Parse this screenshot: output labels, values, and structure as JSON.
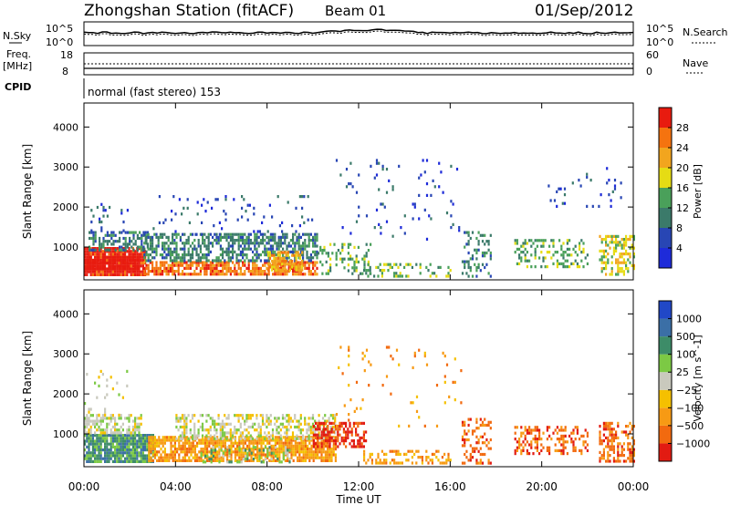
{
  "header": {
    "station": "Zhongshan Station (fitACF)",
    "beam": "Beam 01",
    "date": "01/Sep/2012"
  },
  "top_panels": {
    "nsky_label": "N.Sky",
    "nsearch_label": "N.Search",
    "noise_ticks_left": [
      "10^5",
      "10^0"
    ],
    "noise_ticks_right": [
      "10^5",
      "10^0"
    ],
    "freq_label_1": "Freq.",
    "freq_label_2": "[MHz]",
    "freq_ticks": [
      "18",
      "8"
    ],
    "nave_label": "Nave",
    "nave_ticks": [
      "60",
      "0"
    ],
    "cpid_label": "CPID",
    "cpid_text": "normal (fast stereo) 153"
  },
  "axes": {
    "ylabel": "Slant Range [km]",
    "xlabel": "Time UT",
    "yticks": [
      1000,
      2000,
      3000,
      4000
    ],
    "xticks": [
      "00:00",
      "04:00",
      "08:00",
      "12:00",
      "16:00",
      "20:00",
      "00:00"
    ]
  },
  "colorbars": {
    "power": {
      "label": "Power [dB]",
      "ticks": [
        "4",
        "8",
        "12",
        "16",
        "20",
        "24",
        "28"
      ],
      "colors": [
        "#1e2bd9",
        "#2846b4",
        "#3b7a6a",
        "#4aa05a",
        "#e6dc14",
        "#f2a51e",
        "#f5730f",
        "#e81b0f"
      ]
    },
    "velocity": {
      "label": "Velocity [m s^-1]",
      "ticks": [
        "1000",
        "500",
        "100",
        "25",
        "−25",
        "−100",
        "−500",
        "−1000"
      ],
      "colors": [
        "#2148c7",
        "#3b6fa6",
        "#3d8c68",
        "#7cc944",
        "#c9c9bd",
        "#f5c000",
        "#f79a14",
        "#f26a0f",
        "#e21b12"
      ]
    }
  },
  "chart_data": [
    {
      "type": "heatmap",
      "title": "Power",
      "xlabel": "Time UT",
      "ylabel": "Slant Range [km]",
      "xlim": [
        0,
        24
      ],
      "ylim": [
        180,
        4600
      ],
      "colorbar_label": "Power [dB]",
      "regions": [
        {
          "t0": 0.0,
          "t1": 2.7,
          "r0": 300,
          "r1": 1000,
          "level": 7,
          "density": 0.9
        },
        {
          "t0": 0.0,
          "t1": 2.4,
          "r0": 450,
          "r1": 780,
          "level": 8,
          "density": 0.85
        },
        {
          "t0": 0.2,
          "t1": 2.8,
          "r0": 900,
          "r1": 1400,
          "level": 2,
          "density": 0.55
        },
        {
          "t0": 0.2,
          "t1": 2.0,
          "r0": 1400,
          "r1": 2100,
          "level": 1,
          "density": 0.08
        },
        {
          "t0": 2.6,
          "t1": 10.2,
          "r0": 300,
          "r1": 650,
          "level": 6,
          "density": 0.75
        },
        {
          "t0": 2.6,
          "t1": 10.2,
          "r0": 650,
          "r1": 1350,
          "level": 2,
          "density": 0.6
        },
        {
          "t0": 3.0,
          "t1": 10.0,
          "r0": 1350,
          "r1": 2300,
          "level": 1,
          "density": 0.06
        },
        {
          "t0": 8.0,
          "t1": 9.5,
          "r0": 400,
          "r1": 900,
          "level": 5,
          "density": 0.7
        },
        {
          "t0": 10.2,
          "t1": 12.5,
          "r0": 300,
          "r1": 1100,
          "level": 3,
          "density": 0.25
        },
        {
          "t0": 11.0,
          "t1": 16.5,
          "r0": 1200,
          "r1": 3200,
          "level": 1,
          "density": 0.04
        },
        {
          "t0": 12.2,
          "t1": 16.0,
          "r0": 300,
          "r1": 600,
          "level": 3,
          "density": 0.35
        },
        {
          "t0": 16.5,
          "t1": 17.8,
          "r0": 300,
          "r1": 1400,
          "level": 2,
          "density": 0.3
        },
        {
          "t0": 18.8,
          "t1": 22.0,
          "r0": 500,
          "r1": 1200,
          "level": 3,
          "density": 0.35
        },
        {
          "t0": 22.5,
          "t1": 24.0,
          "r0": 300,
          "r1": 1300,
          "level": 4,
          "density": 0.45
        },
        {
          "t0": 20.0,
          "t1": 23.5,
          "r0": 2000,
          "r1": 3000,
          "level": 1,
          "density": 0.04
        }
      ]
    },
    {
      "type": "heatmap",
      "title": "Velocity",
      "xlabel": "Time UT",
      "ylabel": "Slant Range [km]",
      "xlim": [
        0,
        24
      ],
      "ylim": [
        180,
        4600
      ],
      "colorbar_label": "Velocity [m s^-1]",
      "regions": [
        {
          "t0": 0.0,
          "t1": 3.0,
          "r0": 300,
          "r1": 1000,
          "level": 2,
          "density": 0.9
        },
        {
          "t0": 0.0,
          "t1": 2.5,
          "r0": 1000,
          "r1": 1500,
          "level": 4,
          "density": 0.5
        },
        {
          "t0": 0.0,
          "t1": 2.0,
          "r0": 1500,
          "r1": 2600,
          "level": 4,
          "density": 0.08
        },
        {
          "t0": 2.8,
          "t1": 11.0,
          "r0": 300,
          "r1": 950,
          "level": 6,
          "density": 0.8
        },
        {
          "t0": 4.0,
          "t1": 11.0,
          "r0": 900,
          "r1": 1500,
          "level": 4,
          "density": 0.5
        },
        {
          "t0": 5.0,
          "t1": 9.0,
          "r0": 300,
          "r1": 700,
          "level": 3,
          "density": 0.3
        },
        {
          "t0": 10.0,
          "t1": 12.3,
          "r0": 700,
          "r1": 1300,
          "level": 8,
          "density": 0.6
        },
        {
          "t0": 11.0,
          "t1": 16.5,
          "r0": 1200,
          "r1": 3200,
          "level": 6,
          "density": 0.04
        },
        {
          "t0": 12.2,
          "t1": 16.0,
          "r0": 300,
          "r1": 600,
          "level": 6,
          "density": 0.35
        },
        {
          "t0": 16.5,
          "t1": 17.8,
          "r0": 300,
          "r1": 1400,
          "level": 7,
          "density": 0.3
        },
        {
          "t0": 18.8,
          "t1": 22.0,
          "r0": 500,
          "r1": 1200,
          "level": 7,
          "density": 0.35
        },
        {
          "t0": 22.5,
          "t1": 24.0,
          "r0": 300,
          "r1": 1300,
          "level": 7,
          "density": 0.45
        }
      ]
    }
  ]
}
